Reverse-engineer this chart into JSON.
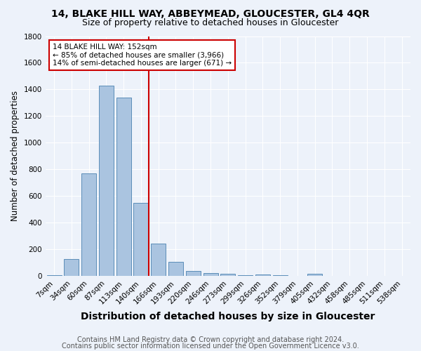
{
  "title": "14, BLAKE HILL WAY, ABBEYMEAD, GLOUCESTER, GL4 4QR",
  "subtitle": "Size of property relative to detached houses in Gloucester",
  "xlabel": "Distribution of detached houses by size in Gloucester",
  "ylabel": "Number of detached properties",
  "bar_labels": [
    "7sqm",
    "34sqm",
    "60sqm",
    "87sqm",
    "113sqm",
    "140sqm",
    "166sqm",
    "193sqm",
    "220sqm",
    "246sqm",
    "273sqm",
    "299sqm",
    "326sqm",
    "352sqm",
    "379sqm",
    "405sqm",
    "432sqm",
    "458sqm",
    "485sqm",
    "511sqm",
    "538sqm"
  ],
  "bar_values": [
    10,
    130,
    770,
    1430,
    1340,
    550,
    245,
    110,
    40,
    25,
    20,
    10,
    15,
    10,
    0,
    20,
    0,
    0,
    0,
    0,
    0
  ],
  "bar_color": "#aac4e0",
  "bar_edge_color": "#5b8db8",
  "background_color": "#edf2fa",
  "grid_color": "#ffffff",
  "vline_color": "#cc0000",
  "annotation_text": "14 BLAKE HILL WAY: 152sqm\n← 85% of detached houses are smaller (3,966)\n14% of semi-detached houses are larger (671) →",
  "annotation_box_color": "#ffffff",
  "annotation_box_edge_color": "#cc0000",
  "footnote1": "Contains HM Land Registry data © Crown copyright and database right 2024.",
  "footnote2": "Contains public sector information licensed under the Open Government Licence v3.0.",
  "ylim": [
    0,
    1800
  ],
  "yticks": [
    0,
    200,
    400,
    600,
    800,
    1000,
    1200,
    1400,
    1600,
    1800
  ],
  "title_fontsize": 10,
  "subtitle_fontsize": 9,
  "xlabel_fontsize": 10,
  "ylabel_fontsize": 8.5,
  "tick_fontsize": 7.5,
  "footnote_fontsize": 7
}
